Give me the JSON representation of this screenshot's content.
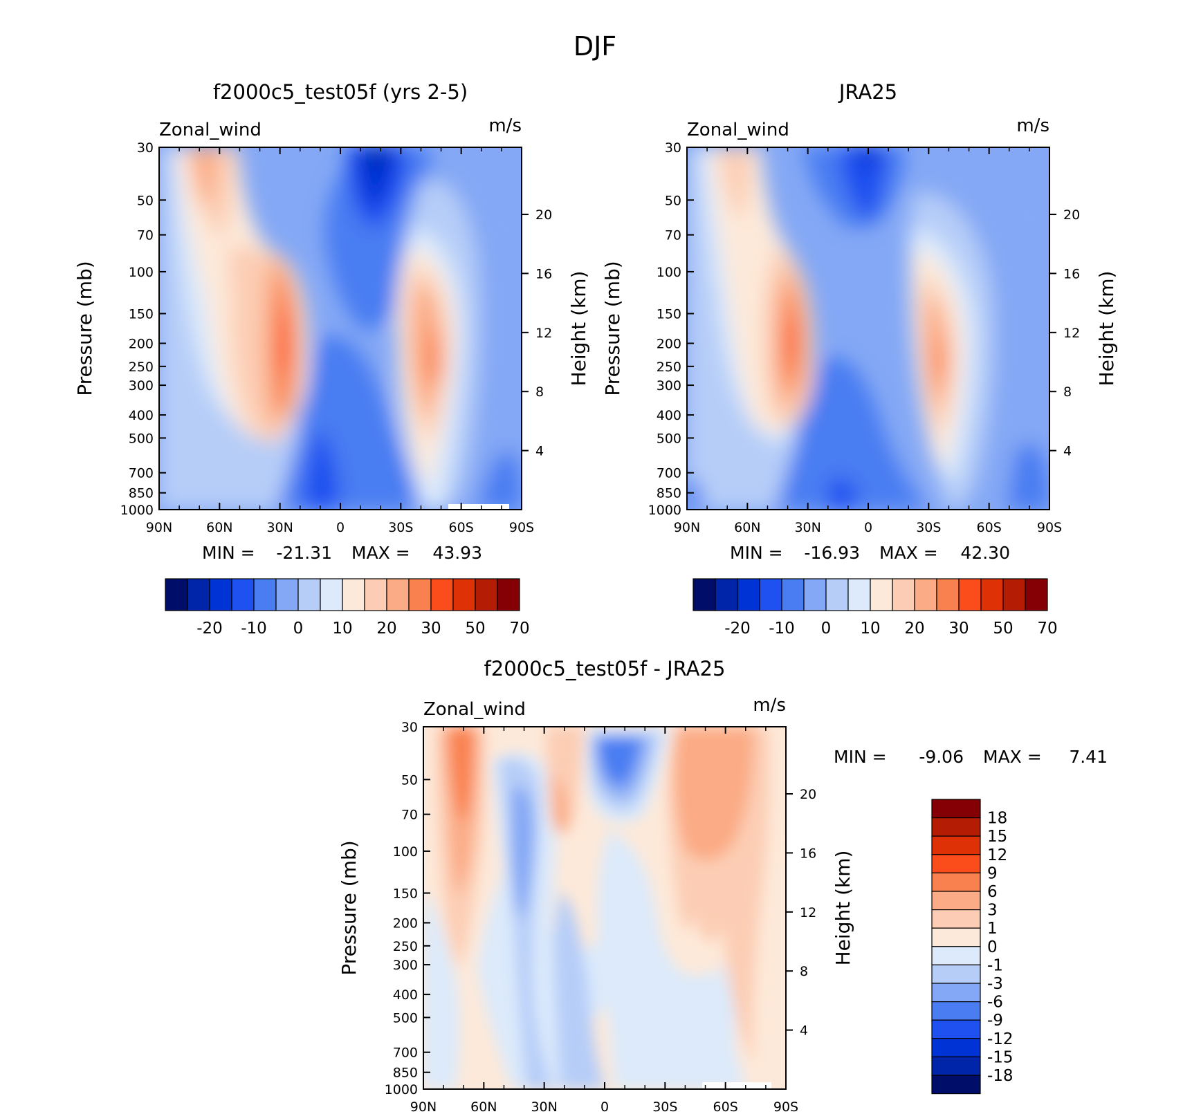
{
  "figure": {
    "title": "DJF"
  },
  "colors": {
    "abs_levels": [
      "#000d69",
      "#0025a8",
      "#0033d6",
      "#1f50f0",
      "#4a7df2",
      "#84a8f5",
      "#b6cdf8",
      "#dceafb",
      "#fde9d9",
      "#fccdb4",
      "#fbab85",
      "#f9814f",
      "#fb4d1c",
      "#de3206",
      "#b41d04",
      "#840004"
    ],
    "diff_levels": [
      "#000d69",
      "#0025a8",
      "#0033d6",
      "#1f50f0",
      "#4a7df2",
      "#84a8f5",
      "#b6cdf8",
      "#dceafb",
      "#fde9d9",
      "#fccdb4",
      "#fbab85",
      "#f9814f",
      "#fb4d1c",
      "#de3206",
      "#b41d04",
      "#840004"
    ]
  },
  "chart_data": [
    {
      "type": "heatmap",
      "title": "f2000c5_test05f (yrs 2-5)",
      "field_label": "Zonal_wind",
      "units": "m/s",
      "ylabel": "Pressure (mb)",
      "ylabel_right": "Height (km)",
      "xlim": [
        90,
        -90
      ],
      "x_ticks": [
        "90N",
        "60N",
        "30N",
        "0",
        "30S",
        "60S",
        "90S"
      ],
      "y_ticks": [
        "30",
        "50",
        "70",
        "100",
        "150",
        "200",
        "250",
        "300",
        "400",
        "500",
        "700",
        "850",
        "1000"
      ],
      "y_ticks_right": [
        "20",
        "16",
        "12",
        "8",
        "4"
      ],
      "ylim": [
        1000,
        30
      ],
      "y_scale": "log",
      "stats": {
        "min_label": "MIN =",
        "min": "-21.31",
        "max_label": "MAX =",
        "max": "43.93"
      },
      "colorbar": {
        "orientation": "horizontal",
        "labels": [
          "-20",
          "-10",
          "0",
          "10",
          "20",
          "30",
          "50",
          "70"
        ]
      },
      "jets": [
        {
          "lat": 30,
          "pressure": 200,
          "peak": 43.93
        },
        {
          "lat": -48,
          "pressure": 200,
          "peak": 35
        }
      ]
    },
    {
      "type": "heatmap",
      "title": "JRA25",
      "field_label": "Zonal_wind",
      "units": "m/s",
      "ylabel": "Pressure (mb)",
      "ylabel_right": "Height (km)",
      "xlim": [
        90,
        -90
      ],
      "x_ticks": [
        "90N",
        "60N",
        "30N",
        "0",
        "30S",
        "60S",
        "90S"
      ],
      "y_ticks": [
        "30",
        "50",
        "70",
        "100",
        "150",
        "200",
        "250",
        "300",
        "400",
        "500",
        "700",
        "850",
        "1000"
      ],
      "y_ticks_right": [
        "20",
        "16",
        "12",
        "8",
        "4"
      ],
      "ylim": [
        1000,
        30
      ],
      "y_scale": "log",
      "stats": {
        "min_label": "MIN =",
        "min": "-16.93",
        "max_label": "MAX =",
        "max": "42.30"
      },
      "colorbar": {
        "orientation": "horizontal",
        "labels": [
          "-20",
          "-10",
          "0",
          "10",
          "20",
          "30",
          "50",
          "70"
        ]
      },
      "jets": [
        {
          "lat": 30,
          "pressure": 200,
          "peak": 42.3
        },
        {
          "lat": -48,
          "pressure": 250,
          "peak": 33
        }
      ]
    },
    {
      "type": "heatmap",
      "title": "f2000c5_test05f - JRA25",
      "field_label": "Zonal_wind",
      "units": "m/s",
      "ylabel": "Pressure (mb)",
      "ylabel_right": "Height (km)",
      "xlim": [
        90,
        -90
      ],
      "x_ticks": [
        "90N",
        "60N",
        "30N",
        "0",
        "30S",
        "60S",
        "90S"
      ],
      "y_ticks": [
        "30",
        "50",
        "70",
        "100",
        "150",
        "200",
        "250",
        "300",
        "400",
        "500",
        "700",
        "850",
        "1000"
      ],
      "y_ticks_right": [
        "20",
        "16",
        "12",
        "8",
        "4"
      ],
      "ylim": [
        1000,
        30
      ],
      "y_scale": "log",
      "stats": {
        "min_label": "MIN =",
        "min": "-9.06",
        "max_label": "MAX =",
        "max": "7.41"
      },
      "colorbar": {
        "orientation": "vertical",
        "labels": [
          "18",
          "15",
          "12",
          "9",
          "6",
          "3",
          "1",
          "0",
          "-1",
          "-3",
          "-6",
          "-9",
          "-12",
          "-15",
          "-18"
        ]
      }
    }
  ]
}
